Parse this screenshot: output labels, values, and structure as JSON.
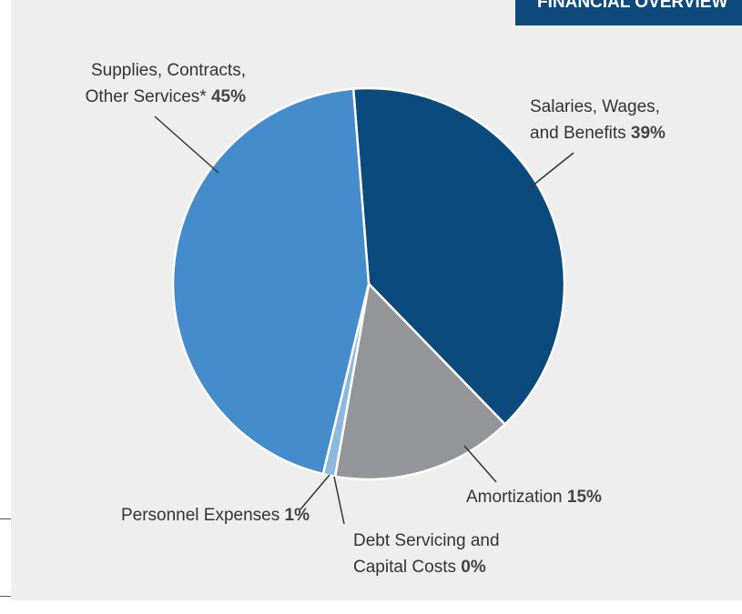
{
  "header": {
    "title": "FINANCIAL OVERVIEW"
  },
  "chart_data": {
    "type": "pie",
    "categories": [
      "Salaries, Wages, and Benefits",
      "Amortization",
      "Debt Servicing and Capital Costs",
      "Personnel Expenses",
      "Supplies, Contracts, Other Services*"
    ],
    "values": [
      39,
      15,
      0,
      1,
      45
    ],
    "value_labels": [
      "39%",
      "15%",
      "0%",
      "1%",
      "45%"
    ],
    "colors": [
      "#0b4a7c",
      "#939598",
      "#3b3b3b",
      "#8fb8dd",
      "#448ccb"
    ]
  }
}
